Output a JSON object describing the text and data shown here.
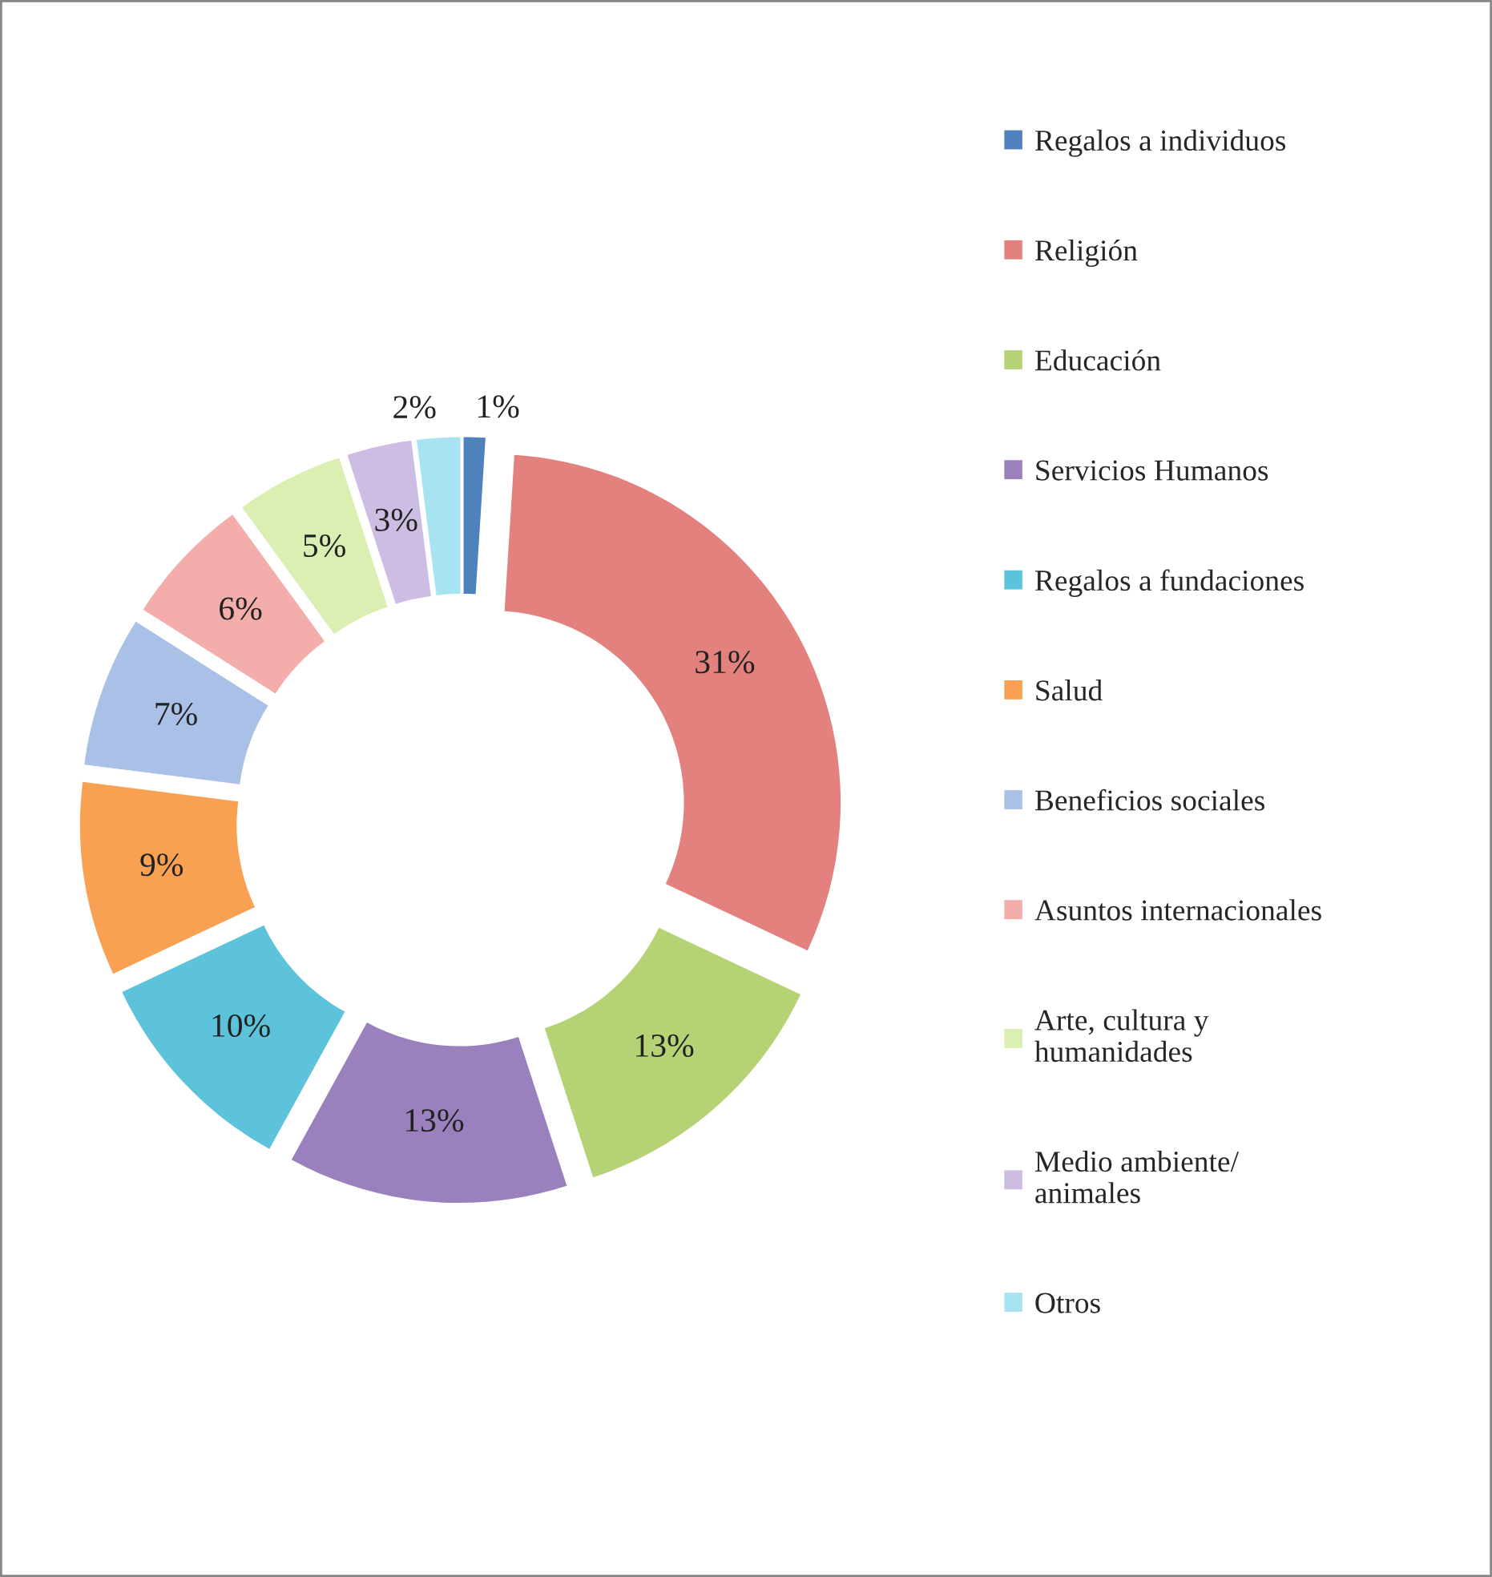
{
  "chart_data": {
    "type": "donut",
    "categories": [
      "Regalos a individuos",
      "Religión",
      "Educación",
      "Servicios Humanos",
      "Regalos a fundaciones",
      "Salud",
      "Beneficios sociales",
      "Asuntos internacionales",
      "Arte, cultura y\nhumanidades",
      "Medio ambiente/\nanimales",
      "Otros"
    ],
    "values": [
      1,
      31,
      13,
      13,
      10,
      9,
      7,
      6,
      5,
      3,
      2
    ],
    "value_labels": [
      "1%",
      "31%",
      "13%",
      "13%",
      "10%",
      "9%",
      "7%",
      "6%",
      "5%",
      "3%",
      "2%"
    ],
    "colors": [
      "#4f81bd",
      "#e2817e",
      "#b5d374",
      "#9a80bd",
      "#5dc3da",
      "#f9a152",
      "#a9c1e6",
      "#f3aeac",
      "#dcefb2",
      "#cdbde3",
      "#a8e3f2"
    ],
    "legend": "right"
  }
}
